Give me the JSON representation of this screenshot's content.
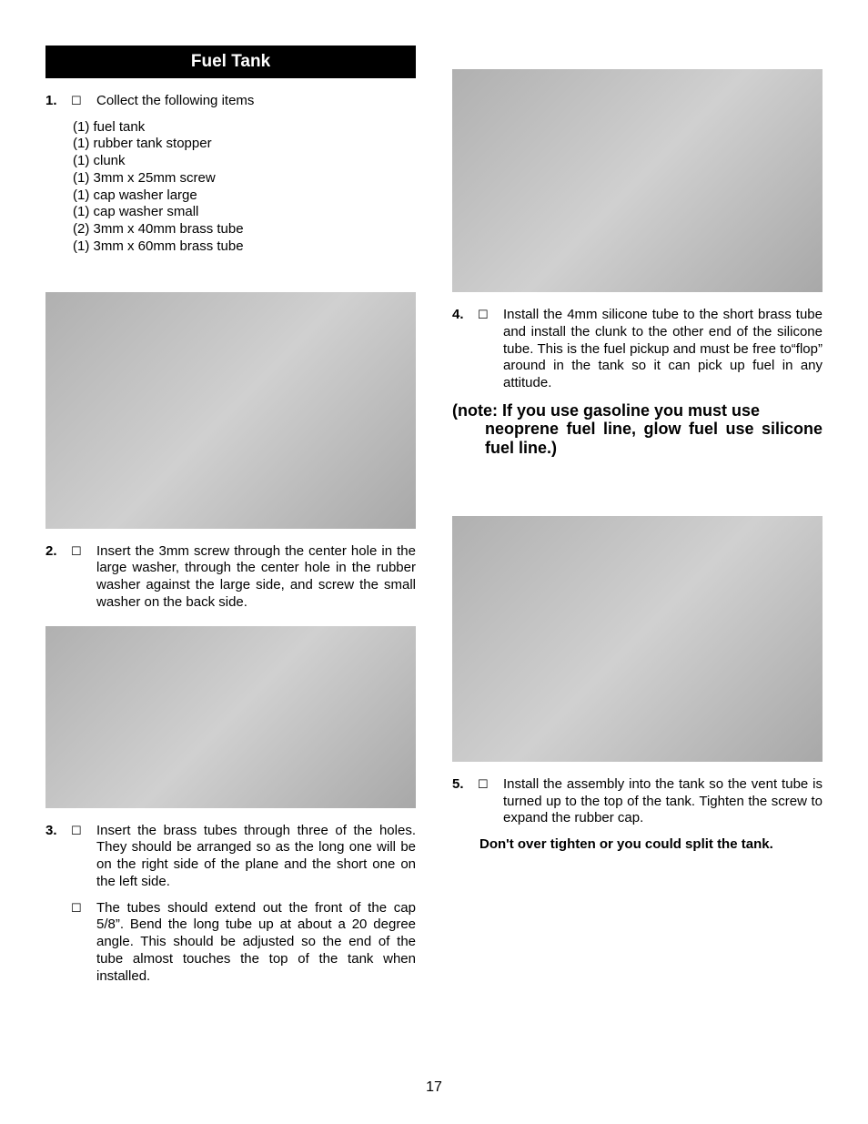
{
  "header": {
    "title": "Fuel Tank"
  },
  "page_number": "17",
  "left": {
    "step1": {
      "num": "1.",
      "text": "Collect the following items",
      "items": [
        "(1) fuel tank",
        "(1) rubber tank stopper",
        "(1) clunk",
        "(1) 3mm x 25mm screw",
        "(1) cap washer large",
        "(1) cap washer small",
        "(2) 3mm x 40mm brass tube",
        "(1) 3mm x 60mm brass tube"
      ]
    },
    "step2": {
      "num": "2.",
      "text": "Insert the 3mm screw through the center hole in the large washer, through the center hole in the rubber washer against the large side, and screw the small washer on the back side."
    },
    "step3a": {
      "num": "3.",
      "text": "Insert the brass tubes through three of the holes. They should be arranged so as the long one will be on the right side of the plane and the short one on the left side."
    },
    "step3b": {
      "text": "The tubes should extend out the front of the cap 5/8”. Bend the long tube up at about a 20 degree angle. This should be adjusted so the end of the tube almost touches the top of the tank when installed."
    }
  },
  "right": {
    "step4": {
      "num": "4.",
      "text": "Install the 4mm silicone tube to the short brass tube and install the clunk to the other end of the silicone tube. This is the fuel pickup and must be free to“flop” around in the tank so it can pick up fuel in any attitude."
    },
    "note_line1": "(note: If you use gasoline you must use",
    "note_rest": "neoprene fuel line, glow fuel use silicone fuel line.)",
    "step5": {
      "num": "5.",
      "text": "Install the assembly into the tank so the vent tube is turned up to the top of the tank. Tighten the screw to expand the rubber cap."
    },
    "warning": "Don't over tighten or you could split the tank."
  },
  "checkbox_glyph": "☐"
}
